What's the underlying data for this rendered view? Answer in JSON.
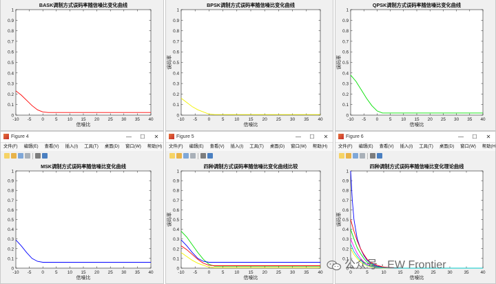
{
  "menu_items": [
    "文件(F)",
    "编辑(E)",
    "查看(V)",
    "插入(I)",
    "工具(T)",
    "桌面(D)",
    "窗口(W)",
    "帮助(H)"
  ],
  "windows": [
    {
      "id": "fig1",
      "has_title": false,
      "title": "",
      "plot_title": "BASK调制方式误码率随信噪比变化曲线"
    },
    {
      "id": "fig2",
      "has_title": false,
      "title": "",
      "plot_title": "BPSK调制方式误码率随信噪比变化曲线"
    },
    {
      "id": "fig3",
      "has_title": false,
      "title": "",
      "plot_title": "QPSK调制方式误码率随信噪比变化曲线"
    },
    {
      "id": "fig4",
      "has_title": true,
      "title": "Figure 4",
      "plot_title": "MSK调制方式误码率随信噪比变化曲线"
    },
    {
      "id": "fig5",
      "has_title": true,
      "title": "Figure 5",
      "plot_title": "四种调制方式误码率随信噪比变化曲线比较"
    },
    {
      "id": "fig6",
      "has_title": true,
      "title": "Figure 6",
      "plot_title": "四种调制方式误码率随信噪比变化理论曲线"
    }
  ],
  "window_controls": [
    "—",
    "☐",
    "✕"
  ],
  "watermark": {
    "text": "公众号 · EW Frontier"
  },
  "chart_data": [
    {
      "type": "line",
      "title": "BASK调制方式误码率随信噪比变化曲线",
      "xlabel": "信噪比",
      "ylabel": "",
      "xlim": [
        -10,
        40
      ],
      "ylim": [
        0,
        1
      ],
      "xticks": [
        -10,
        -5,
        0,
        5,
        10,
        15,
        20,
        25,
        30,
        35,
        40
      ],
      "yticks": [
        0,
        0.1,
        0.2,
        0.3,
        0.4,
        0.5,
        0.6,
        0.7,
        0.8,
        0.9,
        1
      ],
      "series": [
        {
          "color": "#ff0000",
          "x": [
            -10,
            -8,
            -6,
            -4,
            -2,
            0,
            2,
            5,
            10,
            20,
            30,
            40
          ],
          "y": [
            0.23,
            0.19,
            0.14,
            0.09,
            0.05,
            0.03,
            0.025,
            0.025,
            0.025,
            0.025,
            0.025,
            0.025
          ]
        }
      ]
    },
    {
      "type": "line",
      "title": "BPSK调制方式误码率随信噪比变化曲线",
      "xlabel": "信噪比",
      "ylabel": "误码率",
      "xlim": [
        -10,
        40
      ],
      "ylim": [
        0,
        1
      ],
      "xticks": [
        -10,
        -5,
        0,
        5,
        10,
        15,
        20,
        25,
        30,
        35,
        40
      ],
      "yticks": [
        0,
        0.1,
        0.2,
        0.3,
        0.4,
        0.5,
        0.6,
        0.7,
        0.8,
        0.9,
        1
      ],
      "series": [
        {
          "color": "#f2f200",
          "x": [
            -10,
            -8,
            -6,
            -4,
            -2,
            0,
            2,
            5,
            10,
            20,
            30,
            40
          ],
          "y": [
            0.16,
            0.12,
            0.08,
            0.05,
            0.03,
            0.01,
            0.005,
            0.005,
            0.005,
            0.005,
            0.005,
            0.005
          ]
        }
      ]
    },
    {
      "type": "line",
      "title": "QPSK调制方式误码率随信噪比变化曲线",
      "xlabel": "信噪比",
      "ylabel": "误码率",
      "xlim": [
        -10,
        40
      ],
      "ylim": [
        0,
        1
      ],
      "xticks": [
        -10,
        -5,
        0,
        5,
        10,
        15,
        20,
        25,
        30,
        35,
        40
      ],
      "yticks": [
        0,
        0.1,
        0.2,
        0.3,
        0.4,
        0.5,
        0.6,
        0.7,
        0.8,
        0.9,
        1
      ],
      "series": [
        {
          "color": "#00e000",
          "x": [
            -10,
            -8,
            -6,
            -4,
            -2,
            0,
            2,
            5,
            10,
            20,
            30,
            40
          ],
          "y": [
            0.38,
            0.32,
            0.24,
            0.16,
            0.09,
            0.04,
            0.02,
            0.02,
            0.02,
            0.02,
            0.02,
            0.02
          ]
        }
      ]
    },
    {
      "type": "line",
      "title": "MSK调制方式误码率随信噪比变化曲线",
      "xlabel": "信噪比",
      "ylabel": "",
      "xlim": [
        -10,
        40
      ],
      "ylim": [
        0,
        1
      ],
      "xticks": [
        -10,
        -5,
        0,
        5,
        10,
        15,
        20,
        25,
        30,
        35,
        40
      ],
      "yticks": [
        0,
        0.1,
        0.2,
        0.3,
        0.4,
        0.5,
        0.6,
        0.7,
        0.8,
        0.9,
        1
      ],
      "series": [
        {
          "color": "#0000ff",
          "x": [
            -10,
            -8,
            -6,
            -4,
            -2,
            0,
            2,
            5,
            10,
            20,
            30,
            40
          ],
          "y": [
            0.29,
            0.23,
            0.16,
            0.1,
            0.07,
            0.06,
            0.06,
            0.06,
            0.06,
            0.06,
            0.06,
            0.06
          ]
        }
      ]
    },
    {
      "type": "line",
      "title": "四种调制方式误码率随信噪比变化曲线比较",
      "xlabel": "信噪比",
      "ylabel": "误码率",
      "xlim": [
        -10,
        40
      ],
      "ylim": [
        0,
        1
      ],
      "xticks": [
        -10,
        -5,
        0,
        5,
        10,
        15,
        20,
        25,
        30,
        35,
        40
      ],
      "yticks": [
        0,
        0.1,
        0.2,
        0.3,
        0.4,
        0.5,
        0.6,
        0.7,
        0.8,
        0.9,
        1
      ],
      "series": [
        {
          "color": "#00e000",
          "x": [
            -10,
            -8,
            -6,
            -4,
            -2,
            0,
            2,
            5,
            10,
            20,
            30,
            40
          ],
          "y": [
            0.38,
            0.32,
            0.24,
            0.16,
            0.09,
            0.04,
            0.02,
            0.02,
            0.02,
            0.02,
            0.02,
            0.02
          ]
        },
        {
          "color": "#0000ff",
          "x": [
            -10,
            -8,
            -6,
            -4,
            -2,
            0,
            2,
            5,
            10,
            20,
            30,
            40
          ],
          "y": [
            0.29,
            0.23,
            0.16,
            0.1,
            0.07,
            0.06,
            0.06,
            0.06,
            0.06,
            0.06,
            0.06,
            0.06
          ]
        },
        {
          "color": "#ff0000",
          "x": [
            -10,
            -8,
            -6,
            -4,
            -2,
            0,
            2,
            5,
            10,
            20,
            30,
            40
          ],
          "y": [
            0.23,
            0.19,
            0.14,
            0.09,
            0.05,
            0.03,
            0.025,
            0.025,
            0.025,
            0.025,
            0.025,
            0.025
          ]
        },
        {
          "color": "#f2f200",
          "x": [
            -10,
            -8,
            -6,
            -4,
            -2,
            0,
            2,
            5,
            10,
            20,
            30,
            40
          ],
          "y": [
            0.16,
            0.12,
            0.08,
            0.05,
            0.03,
            0.01,
            0.005,
            0.005,
            0.005,
            0.005,
            0.005,
            0.005
          ]
        }
      ]
    },
    {
      "type": "line",
      "title": "四种调制方式误码率随信噪比变化理论曲线",
      "xlabel": "信噪比",
      "ylabel": "误码率",
      "xlim": [
        0,
        40
      ],
      "ylim": [
        0,
        1
      ],
      "xticks": [
        0,
        5,
        10,
        15,
        20,
        25,
        30,
        35,
        40
      ],
      "yticks": [
        0,
        0.1,
        0.2,
        0.3,
        0.4,
        0.5,
        0.6,
        0.7,
        0.8,
        0.9,
        1
      ],
      "series": [
        {
          "color": "#0000ff",
          "x": [
            0,
            0.5,
            1,
            2,
            3,
            4,
            5,
            6,
            8,
            10,
            15,
            20,
            40
          ],
          "y": [
            1,
            0.7,
            0.5,
            0.3,
            0.2,
            0.13,
            0.08,
            0.05,
            0.02,
            0.01,
            0,
            0,
            0
          ]
        },
        {
          "color": "#ff0000",
          "x": [
            0,
            1,
            2,
            3,
            4,
            5,
            6,
            8,
            10,
            15,
            20,
            40
          ],
          "y": [
            0.5,
            0.38,
            0.28,
            0.2,
            0.14,
            0.09,
            0.06,
            0.03,
            0.01,
            0,
            0,
            0
          ]
        },
        {
          "color": "#00e000",
          "x": [
            0,
            1,
            2,
            3,
            4,
            5,
            6,
            8,
            10,
            15,
            20,
            40
          ],
          "y": [
            0.4,
            0.3,
            0.21,
            0.15,
            0.1,
            0.06,
            0.04,
            0.015,
            0.005,
            0,
            0,
            0
          ]
        },
        {
          "color": "#f2f200",
          "x": [
            0,
            1,
            2,
            3,
            4,
            5,
            6,
            8,
            10,
            15,
            20,
            40
          ],
          "y": [
            0.2,
            0.14,
            0.1,
            0.06,
            0.04,
            0.025,
            0.015,
            0.005,
            0,
            0,
            0,
            0
          ]
        },
        {
          "color": "#ff00ff",
          "x": [
            0,
            1,
            2,
            3,
            4,
            5,
            6,
            8,
            10,
            15,
            20,
            40
          ],
          "y": [
            0.3,
            0.22,
            0.15,
            0.1,
            0.065,
            0.04,
            0.025,
            0.01,
            0.003,
            0,
            0,
            0
          ]
        },
        {
          "color": "#00c8c8",
          "x": [
            0,
            1,
            2,
            3,
            4,
            5,
            6,
            8,
            10,
            15,
            20,
            40
          ],
          "y": [
            0.25,
            0.17,
            0.12,
            0.08,
            0.05,
            0.03,
            0.02,
            0.007,
            0.002,
            0,
            0,
            0
          ]
        }
      ]
    }
  ]
}
